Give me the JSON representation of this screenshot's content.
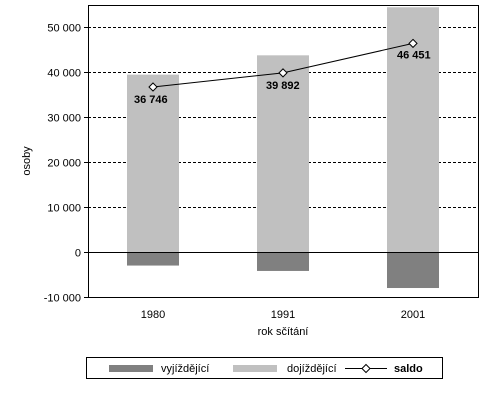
{
  "chart_data": {
    "type": "bar",
    "categories": [
      "1980",
      "1991",
      "2001"
    ],
    "series": [
      {
        "name": "vyjíždějící",
        "kind": "bar",
        "color": "#808080",
        "values": [
          -3000,
          -4200,
          -8000
        ]
      },
      {
        "name": "dojíždějící",
        "kind": "bar",
        "color": "#c0c0c0",
        "values": [
          39500,
          43800,
          54500
        ]
      },
      {
        "name": "saldo",
        "kind": "line",
        "color": "#000000",
        "marker": "diamond",
        "values": [
          36746,
          39892,
          46451
        ]
      }
    ],
    "data_labels": [
      "36 746",
      "39 892",
      "46 451"
    ],
    "xlabel": "rok sčítání",
    "ylabel": "osoby",
    "ylim": [
      -10000,
      55000
    ],
    "yticks": [
      -10000,
      0,
      10000,
      20000,
      30000,
      40000,
      50000
    ],
    "ytick_labels": [
      "-10 000",
      "0",
      "10 000",
      "20 000",
      "30 000",
      "40 000",
      "50 000"
    ],
    "grid": "horizontal dashed",
    "legend_position": "bottom"
  }
}
